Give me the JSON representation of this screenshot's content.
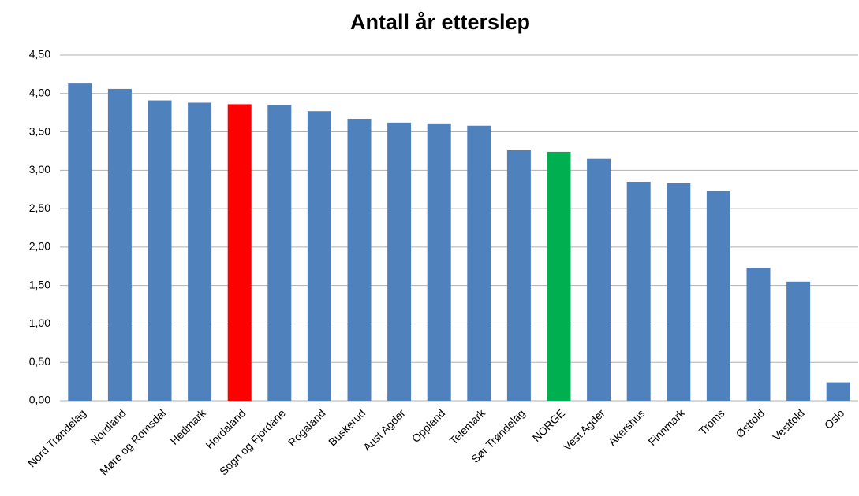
{
  "chart_data": {
    "type": "bar",
    "title": "Antall år etterslep",
    "categories": [
      "Nord Trøndelag",
      "Nordland",
      "Møre og Romsdal",
      "Hedmark",
      "Hordaland",
      "Sogn og Fjordane",
      "Rogaland",
      "Buskerud",
      "Aust Agder",
      "Oppland",
      "Telemark",
      "Sør Trøndelag",
      "NORGE",
      "Vest Agder",
      "Akershus",
      "Finnmark",
      "Troms",
      "Østfold",
      "Vestfold",
      "Oslo"
    ],
    "values": [
      4.13,
      4.06,
      3.91,
      3.88,
      3.86,
      3.85,
      3.77,
      3.67,
      3.62,
      3.61,
      3.58,
      3.26,
      3.24,
      3.15,
      2.85,
      2.83,
      2.73,
      1.73,
      1.55,
      0.24
    ],
    "colors": [
      "#4f81bd",
      "#4f81bd",
      "#4f81bd",
      "#4f81bd",
      "#ff0000",
      "#4f81bd",
      "#4f81bd",
      "#4f81bd",
      "#4f81bd",
      "#4f81bd",
      "#4f81bd",
      "#4f81bd",
      "#00b050",
      "#4f81bd",
      "#4f81bd",
      "#4f81bd",
      "#4f81bd",
      "#4f81bd",
      "#4f81bd",
      "#4f81bd"
    ],
    "ylim": [
      0,
      4.5
    ],
    "yticks": [
      {
        "value": 0,
        "label": "0,00"
      },
      {
        "value": 0.5,
        "label": "0,50"
      },
      {
        "value": 1,
        "label": "1,00"
      },
      {
        "value": 1.5,
        "label": "1,50"
      },
      {
        "value": 2,
        "label": "2,00"
      },
      {
        "value": 2.5,
        "label": "2,50"
      },
      {
        "value": 3,
        "label": "3,00"
      },
      {
        "value": 3.5,
        "label": "3,50"
      },
      {
        "value": 4,
        "label": "4,00"
      },
      {
        "value": 4.5,
        "label": "4,50"
      }
    ],
    "grid": true
  }
}
